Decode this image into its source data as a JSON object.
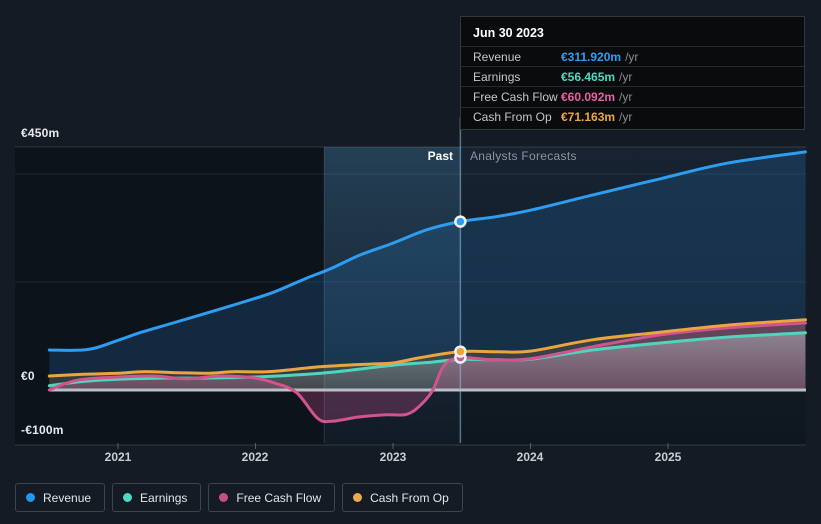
{
  "tooltip": {
    "date": "Jun 30 2023",
    "rows": [
      {
        "label": "Revenue",
        "value": "€311.920m",
        "unit": "/yr",
        "color": "#2f9ef2"
      },
      {
        "label": "Earnings",
        "value": "€56.465m",
        "unit": "/yr",
        "color": "#4fd8c2"
      },
      {
        "label": "Free Cash Flow",
        "value": "€60.092m",
        "unit": "/yr",
        "color": "#ec5fa4"
      },
      {
        "label": "Cash From Op",
        "value": "€71.163m",
        "unit": "/yr",
        "color": "#f0a73e"
      }
    ]
  },
  "axis": {
    "y_top": "€450m",
    "y_zero": "€0",
    "y_neg": "-€100m",
    "years": [
      "2021",
      "2022",
      "2023",
      "2024",
      "2025"
    ]
  },
  "sections": {
    "past": "Past",
    "forecast": "Analysts Forecasts"
  },
  "legend": [
    {
      "label": "Revenue",
      "color": "#2196f3"
    },
    {
      "label": "Earnings",
      "color": "#4fd8c4"
    },
    {
      "label": "Free Cash Flow",
      "color": "#c74d8a"
    },
    {
      "label": "Cash From Op",
      "color": "#e9a94d"
    }
  ],
  "chart_data": {
    "type": "line",
    "title": "Past performance and analysts forecasts",
    "x_axis": {
      "unit": "year",
      "range": [
        2020.5,
        2026.0
      ],
      "ticks": [
        2021,
        2022,
        2023,
        2024,
        2025
      ]
    },
    "y_axis": {
      "unit": "€m",
      "range": [
        -102,
        450
      ],
      "labeled_gridlines": [
        450,
        0,
        -100
      ],
      "gridline_values": [
        450,
        400,
        200
      ]
    },
    "divider": {
      "x": 2023.49,
      "date": "Jun 30 2023",
      "left_label": "Past",
      "right_label": "Analysts Forecasts"
    },
    "highlight_band": {
      "from": 2022.5,
      "to": 2023.49
    },
    "legend_position": "bottom",
    "series": [
      {
        "name": "Revenue",
        "color": "#2e9df0",
        "fill": "rgba(43,125,190,0.22)",
        "marker_value": 311.92,
        "past": [
          [
            2020.5,
            74
          ],
          [
            2020.78,
            75
          ],
          [
            2021.0,
            92
          ],
          [
            2021.17,
            107
          ],
          [
            2021.4,
            124
          ],
          [
            2021.65,
            143
          ],
          [
            2021.9,
            162
          ],
          [
            2022.13,
            181
          ],
          [
            2022.37,
            207
          ],
          [
            2022.55,
            225
          ],
          [
            2022.76,
            250
          ],
          [
            2023.0,
            272
          ],
          [
            2023.25,
            297
          ],
          [
            2023.49,
            311.92
          ]
        ],
        "forecast": [
          [
            2023.49,
            311.92
          ],
          [
            2023.75,
            321
          ],
          [
            2024.0,
            333
          ],
          [
            2024.45,
            361
          ],
          [
            2024.94,
            391
          ],
          [
            2025.43,
            420
          ],
          [
            2026.0,
            441
          ]
        ]
      },
      {
        "name": "Earnings",
        "color": "#4fd5bd",
        "fill": "gradient-gray",
        "marker_value": 56.465,
        "past": [
          [
            2020.5,
            8
          ],
          [
            2020.75,
            16
          ],
          [
            2021.0,
            20
          ],
          [
            2021.3,
            22
          ],
          [
            2021.6,
            22
          ],
          [
            2022.0,
            24
          ],
          [
            2022.3,
            28
          ],
          [
            2022.6,
            34
          ],
          [
            2023.0,
            46
          ],
          [
            2023.25,
            51
          ],
          [
            2023.49,
            56.47
          ]
        ],
        "forecast": [
          [
            2023.49,
            56.47
          ],
          [
            2023.75,
            56
          ],
          [
            2024.0,
            57
          ],
          [
            2024.45,
            74
          ],
          [
            2024.94,
            87
          ],
          [
            2025.43,
            98
          ],
          [
            2026.0,
            106
          ]
        ]
      },
      {
        "name": "Free Cash Flow",
        "color": "#d1538f",
        "fill": "rgba(205,80,140,0.28)",
        "marker_value": 60.092,
        "past": [
          [
            2020.5,
            0
          ],
          [
            2020.7,
            18
          ],
          [
            2021.0,
            24
          ],
          [
            2021.25,
            26
          ],
          [
            2021.5,
            21
          ],
          [
            2021.75,
            26
          ],
          [
            2022.0,
            22
          ],
          [
            2022.15,
            12
          ],
          [
            2022.3,
            -5
          ],
          [
            2022.45,
            -52
          ],
          [
            2022.55,
            -58
          ],
          [
            2022.75,
            -50
          ],
          [
            2022.95,
            -46
          ],
          [
            2023.1,
            -45
          ],
          [
            2023.2,
            -28
          ],
          [
            2023.29,
            0
          ],
          [
            2023.37,
            45
          ],
          [
            2023.49,
            60.09
          ]
        ],
        "forecast": [
          [
            2023.49,
            60.09
          ],
          [
            2023.72,
            56
          ],
          [
            2024.0,
            58
          ],
          [
            2024.45,
            80
          ],
          [
            2024.94,
            102
          ],
          [
            2025.43,
            115
          ],
          [
            2026.0,
            124
          ]
        ]
      },
      {
        "name": "Cash From Op",
        "color": "#eba440",
        "fill": "rgba(235,164,64,0.16)",
        "marker_value": 71.163,
        "past": [
          [
            2020.5,
            26
          ],
          [
            2020.75,
            29
          ],
          [
            2021.0,
            31
          ],
          [
            2021.2,
            34
          ],
          [
            2021.45,
            32
          ],
          [
            2021.65,
            31
          ],
          [
            2021.85,
            34
          ],
          [
            2022.1,
            34
          ],
          [
            2022.47,
            43
          ],
          [
            2022.83,
            48
          ],
          [
            2023.0,
            50
          ],
          [
            2023.2,
            60
          ],
          [
            2023.49,
            71.16
          ]
        ],
        "forecast": [
          [
            2023.49,
            71.16
          ],
          [
            2023.75,
            71
          ],
          [
            2024.0,
            72
          ],
          [
            2024.45,
            93
          ],
          [
            2024.94,
            107
          ],
          [
            2025.43,
            120
          ],
          [
            2026.0,
            130
          ]
        ]
      }
    ]
  }
}
